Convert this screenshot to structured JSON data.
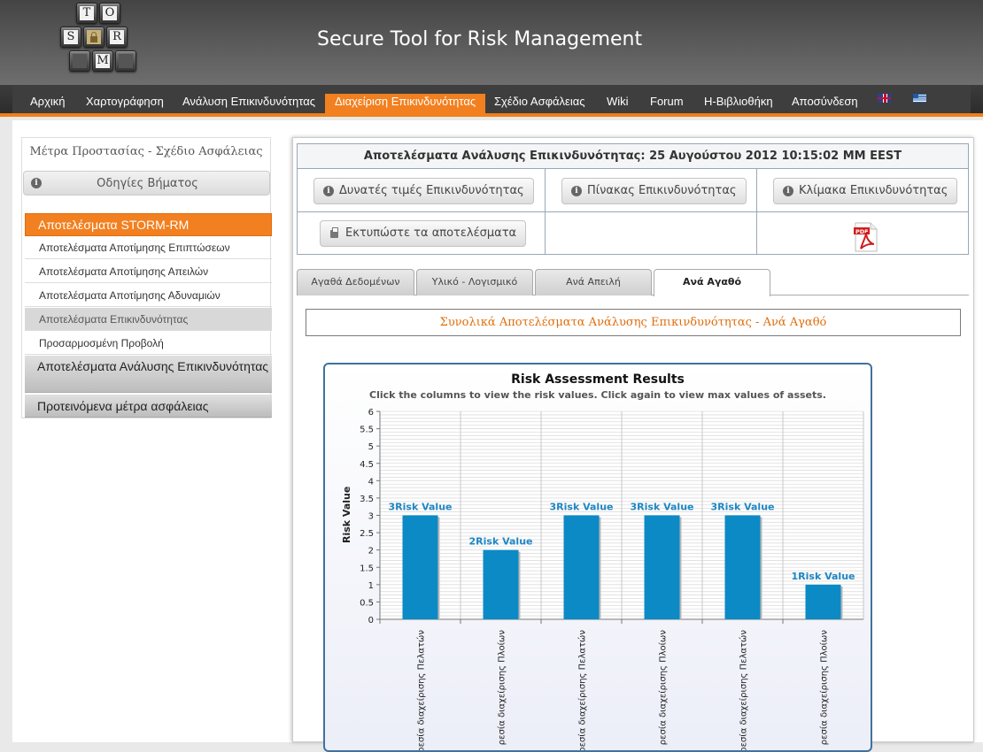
{
  "logo": {
    "keys": [
      "T",
      "O",
      "S",
      "R",
      "M"
    ]
  },
  "site_title": "Secure Tool for Risk Management",
  "nav": {
    "items": [
      "Αρχική",
      "Χαρτογράφηση",
      "Ανάλυση Επικινδυνότητας",
      "Διαχείριση Επικινδυνότητας",
      "Σχέδιο Ασφάλειας",
      "Wiki",
      "Forum",
      "Η-Βιβλιοθήκη",
      "Αποσύνδεση"
    ],
    "active_index": 3,
    "accent_color": "#f28020"
  },
  "sidebar": {
    "title": "Μέτρα Προστασίας - Σχέδιο Ασφάλειας",
    "help_label": "Οδηγίες Βήματος",
    "section": "Αποτελέσματα STORM-RM",
    "sub_items": [
      "Αποτελέσματα Αποτίμησης Επιπτώσεων",
      "Αποτελέσματα Αποτίμησης Απειλών",
      "Αποτελέσματα Αποτίμησης Αδυναμιών",
      "Αποτελέσματα Επικινδυνότητας",
      "Προσαρμοσμένη Προβολή"
    ],
    "selected_sub": 3,
    "groups": [
      "Αποτελέσματα Ανάλυσης Επικινδυνότητας",
      "Προτεινόμενα μέτρα ασφάλειας"
    ]
  },
  "results": {
    "heading": "Αποτελέσματα Ανάλυσης Επικινδυνότητας: 25 Αυγούστου 2012 10:15:02 ΜΜ EEST",
    "btn_values": "Δυνατές τιμές Επικινδυνότητας",
    "btn_table": "Πίνακας Επικινδυνότητας",
    "btn_scale": "Κλίμακα Επικινδυνότητας",
    "btn_print": "Εκτυπώστε τα αποτελέσματα",
    "pdf_label": "PDF"
  },
  "tabs": {
    "items": [
      "Αγαθά Δεδομένων",
      "Υλικό - Λογισμικό",
      "Ανά Απειλή",
      "Ανά Αγαθό"
    ],
    "active_index": 3
  },
  "summary_title": "Συνολικά Αποτελέσματα Ανάλυσης Επικινδυνότητας - Ανά Αγαθό",
  "chart_data": {
    "type": "bar",
    "title": "Risk Assessment Results",
    "subtitle": "Click the columns to view the risk values. Click again to view max values of assets.",
    "ylabel": "Risk Value",
    "xlabel": "",
    "ylim": [
      0,
      6
    ],
    "yticks": [
      "0",
      "0.5",
      "1",
      "1.5",
      "2",
      "2.5",
      "3",
      "3.5",
      "4",
      "4.5",
      "5",
      "5.5",
      "6"
    ],
    "categories": [
      "ρεσία διαχείρισης Πελατών",
      "ρεσία διαχείρισης Πλοίων",
      "ρεσία διαχείρισης Πελατών",
      "ρεσία διαχείρισης Πλοίων",
      "ρεσία διαχείρισης Πελατών",
      "ρεσία διαχείρισης Πλοίων"
    ],
    "values": [
      3,
      2,
      3,
      3,
      3,
      1
    ],
    "data_labels": [
      "3Risk Value",
      "2Risk Value",
      "3Risk Value",
      "3Risk Value",
      "3Risk Value",
      "1Risk Value"
    ],
    "bar_color": "#0b8ac6",
    "label_color": "#1f86c4",
    "grid": true
  }
}
